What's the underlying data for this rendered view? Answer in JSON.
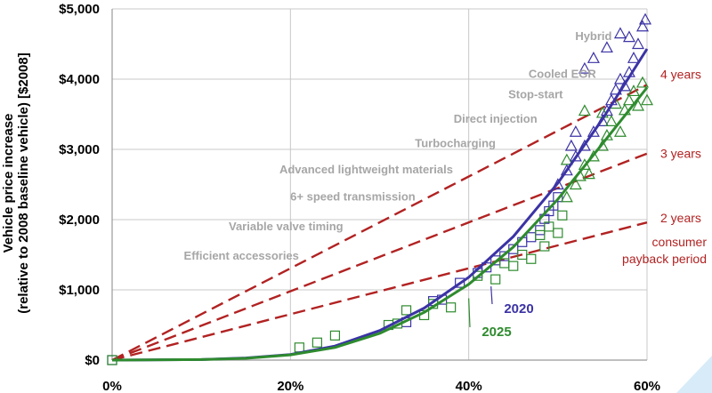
{
  "chart_data": {
    "type": "scatter",
    "title": "",
    "ylabel_line1": "Vehicle price increase",
    "ylabel_line2": "(relative to 2008 baseline vehicle) [$2008]",
    "xlabel": "",
    "xlim": [
      0,
      60
    ],
    "ylim": [
      0,
      5000
    ],
    "x_ticks": [
      "0%",
      "20%",
      "40%",
      "60%"
    ],
    "y_ticks": [
      "$0",
      "$1,000",
      "$2,000",
      "$3,000",
      "$4,000",
      "$5,000"
    ],
    "grid": true,
    "colors": {
      "s2020": "#3b33a5",
      "s2025": "#2e8b2e",
      "payback": "#b22222",
      "tech_text": "#a6a6a6",
      "grid": "#c8c8c8"
    },
    "technology_labels": [
      {
        "text": "Hybrid",
        "x": 54,
        "y": 4560
      },
      {
        "text": "Cooled EGR",
        "x": 50.5,
        "y": 4020
      },
      {
        "text": "Stop-start",
        "x": 47.5,
        "y": 3730
      },
      {
        "text": "Direct injection",
        "x": 43,
        "y": 3380
      },
      {
        "text": "Turbocharging",
        "x": 38.5,
        "y": 3030
      },
      {
        "text": "Advanced lightweight materials",
        "x": 28.5,
        "y": 2660
      },
      {
        "text": "6+ speed transmission",
        "x": 27,
        "y": 2270
      },
      {
        "text": "Variable valve timing",
        "x": 19.5,
        "y": 1850
      },
      {
        "text": "Efficient accessories",
        "x": 14.5,
        "y": 1430
      }
    ],
    "payback_lines": [
      {
        "label": "4 years",
        "end": [
          60,
          3920
        ]
      },
      {
        "label": "3 years",
        "end": [
          60,
          2940
        ]
      },
      {
        "label": "2 years",
        "end": [
          60,
          1960
        ]
      }
    ],
    "payback_caption": [
      "consumer",
      "payback period"
    ],
    "series": [
      {
        "name": "2020",
        "color": "#3b33a5",
        "curve": [
          [
            0,
            0
          ],
          [
            10,
            8
          ],
          [
            15,
            30
          ],
          [
            20,
            80
          ],
          [
            25,
            200
          ],
          [
            30,
            420
          ],
          [
            35,
            740
          ],
          [
            40,
            1180
          ],
          [
            45,
            1760
          ],
          [
            50,
            2520
          ],
          [
            55,
            3430
          ],
          [
            60,
            4430
          ]
        ],
        "points_squares": [
          [
            0,
            0
          ],
          [
            33,
            540
          ],
          [
            36,
            840
          ],
          [
            37,
            860
          ],
          [
            39,
            1100
          ],
          [
            41,
            1240
          ],
          [
            42,
            1320
          ],
          [
            43,
            1420
          ],
          [
            44,
            1480
          ],
          [
            45,
            1580
          ],
          [
            46,
            1680
          ],
          [
            47,
            1750
          ],
          [
            48,
            1850
          ],
          [
            48.5,
            2010
          ],
          [
            49,
            2120
          ],
          [
            49.5,
            2200
          ],
          [
            50,
            2320
          ]
        ],
        "points_triangles": [
          [
            50,
            2500
          ],
          [
            51,
            2700
          ],
          [
            52,
            2900
          ],
          [
            53,
            3050
          ],
          [
            54,
            3250
          ],
          [
            55,
            3400
          ],
          [
            55.5,
            3550
          ],
          [
            56,
            3700
          ],
          [
            56.5,
            3850
          ],
          [
            57,
            4000
          ],
          [
            57.5,
            3900
          ],
          [
            58,
            4100
          ],
          [
            58.5,
            4300
          ],
          [
            59,
            4500
          ],
          [
            59.5,
            4750
          ],
          [
            59.8,
            4850
          ],
          [
            58,
            4600
          ],
          [
            57,
            4650
          ],
          [
            55.5,
            4450
          ],
          [
            54,
            4300
          ],
          [
            53,
            4150
          ],
          [
            52,
            3250
          ],
          [
            51.5,
            3050
          ]
        ]
      },
      {
        "name": "2025",
        "color": "#2e8b2e",
        "curve": [
          [
            0,
            0
          ],
          [
            10,
            8
          ],
          [
            15,
            25
          ],
          [
            20,
            75
          ],
          [
            25,
            180
          ],
          [
            30,
            380
          ],
          [
            35,
            680
          ],
          [
            40,
            1080
          ],
          [
            45,
            1610
          ],
          [
            50,
            2290
          ],
          [
            55,
            3080
          ],
          [
            60,
            3880
          ]
        ],
        "points_squares": [
          [
            0,
            0
          ],
          [
            21,
            180
          ],
          [
            23,
            250
          ],
          [
            25,
            350
          ],
          [
            31,
            500
          ],
          [
            32,
            520
          ],
          [
            33,
            710
          ],
          [
            35,
            640
          ],
          [
            36,
            800
          ],
          [
            38,
            750
          ],
          [
            41,
            1200
          ],
          [
            43,
            1150
          ],
          [
            44,
            1380
          ],
          [
            45,
            1340
          ],
          [
            46,
            1500
          ],
          [
            47,
            1440
          ],
          [
            48,
            1780
          ],
          [
            48.5,
            1620
          ],
          [
            49,
            1900
          ],
          [
            50,
            1810
          ],
          [
            50.5,
            2060
          ]
        ],
        "points_triangles": [
          [
            51,
            2320
          ],
          [
            52,
            2500
          ],
          [
            53,
            2780
          ],
          [
            53.5,
            2650
          ],
          [
            54,
            2900
          ],
          [
            55,
            3050
          ],
          [
            55.5,
            3200
          ],
          [
            56,
            3400
          ],
          [
            57,
            3250
          ],
          [
            57.5,
            3560
          ],
          [
            58,
            3700
          ],
          [
            58.5,
            3830
          ],
          [
            59,
            3620
          ],
          [
            59.5,
            3950
          ],
          [
            60,
            3700
          ],
          [
            56.5,
            3650
          ],
          [
            55,
            3520
          ],
          [
            51,
            2850
          ],
          [
            53,
            3550
          ],
          [
            52.5,
            2620
          ]
        ]
      }
    ]
  }
}
